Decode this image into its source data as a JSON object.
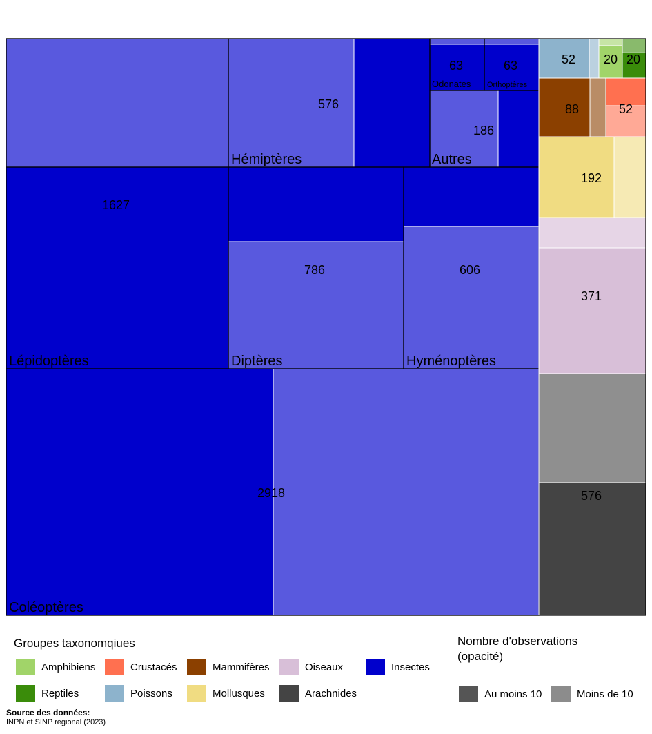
{
  "chart_data": {
    "type": "treemap",
    "value_label": "Nombre d'observations",
    "groups": [
      {
        "name": "Insectes",
        "color": "#0000CC",
        "children": [
          {
            "name": "Coléoptères",
            "total": 2918
          },
          {
            "name": "Lépidoptères",
            "total": 1627
          },
          {
            "name": "Diptères",
            "total": 786
          },
          {
            "name": "Hyménoptères",
            "total": 606
          },
          {
            "name": "Hémiptères",
            "total": 576
          },
          {
            "name": "Autres",
            "total": 186
          },
          {
            "name": "Odonates",
            "total": 63
          },
          {
            "name": "Orthoptères",
            "total": 63
          }
        ]
      },
      {
        "name": "Arachnides",
        "color": "#444444",
        "total": 576
      },
      {
        "name": "Oiseaux",
        "color": "#D8BFD8",
        "total": 371
      },
      {
        "name": "Mollusques",
        "color": "#F0DC82",
        "total": 192
      },
      {
        "name": "Mammifères",
        "color": "#8B4000",
        "total": 88
      },
      {
        "name": "Crustacés",
        "color": "#FF7050",
        "total": 52
      },
      {
        "name": "Poissons",
        "color": "#8DB3CC",
        "total": 52
      },
      {
        "name": "Amphibiens",
        "color": "#A1D469",
        "total": 20
      },
      {
        "name": "Reptiles",
        "color": "#3A8C0A",
        "total": 20
      }
    ],
    "opacity_legend": {
      "at_least_10": "Au moins 10",
      "less_than_10": "Moins de 10"
    }
  },
  "legend": {
    "groups_title": "Groupes taxonomqiues",
    "opacity_title_line1": "Nombre d'observations",
    "opacity_title_line2": "(opacité)",
    "items": [
      {
        "label": "Amphibiens",
        "color": "#A1D469"
      },
      {
        "label": "Crustacés",
        "color": "#FF7050"
      },
      {
        "label": "Mammifères",
        "color": "#8B4000"
      },
      {
        "label": "Oiseaux",
        "color": "#D8BFD8"
      },
      {
        "label": "Insectes",
        "color": "#0000CC"
      },
      {
        "label": "Reptiles",
        "color": "#3A8C0A"
      },
      {
        "label": "Poissons",
        "color": "#8DB3CC"
      },
      {
        "label": "Mollusques",
        "color": "#F0DC82"
      },
      {
        "label": "Arachnides",
        "color": "#444444"
      }
    ],
    "opacity_items": [
      {
        "label": "Au moins 10",
        "color": "#555555"
      },
      {
        "label": "Moins de 10",
        "color": "#8C8C8C"
      }
    ]
  },
  "source": {
    "title": "Source des données:",
    "text": "INPN et SINP régional (2023)"
  }
}
